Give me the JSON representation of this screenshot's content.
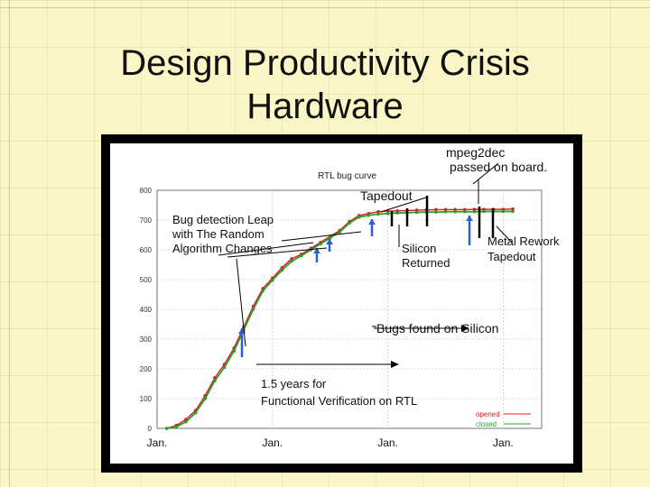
{
  "slide": {
    "title_line1": "Design Productivity Crisis",
    "title_line2": "Hardware"
  },
  "colors": {
    "background": "#fbf6c8",
    "frame": "#000000",
    "opened_series": "#d62020",
    "closed_series": "#2aa02a",
    "arrow_blue": "#2a5fd6"
  },
  "chart_data": {
    "type": "line",
    "title": "RTL bug curve",
    "xlabel": "",
    "ylabel": "",
    "x_tick_labels": [
      "Jan.",
      "Jan.",
      "Jan.",
      "Jan."
    ],
    "y_ticks": [
      0,
      100,
      200,
      300,
      400,
      500,
      600,
      700,
      800
    ],
    "ylim": [
      0,
      800
    ],
    "xlim_months": [
      0,
      40
    ],
    "grid": true,
    "legend_position": "bottom-right",
    "series": [
      {
        "name": "opened",
        "x": [
          1,
          2,
          3,
          4,
          5,
          6,
          7,
          8,
          9,
          10,
          11,
          12,
          13,
          14,
          15,
          16,
          17,
          18,
          19,
          20,
          21,
          22,
          23,
          24,
          25,
          26,
          27,
          28,
          29,
          30,
          31,
          32,
          33,
          34,
          35,
          36,
          37
        ],
        "y": [
          0,
          10,
          30,
          60,
          110,
          170,
          215,
          270,
          340,
          410,
          470,
          505,
          540,
          570,
          585,
          605,
          625,
          645,
          665,
          695,
          715,
          722,
          728,
          730,
          731,
          732,
          733,
          734,
          735,
          735,
          735,
          735,
          736,
          736,
          736,
          736,
          737
        ]
      },
      {
        "name": "closed",
        "x": [
          1,
          2,
          3,
          4,
          5,
          6,
          7,
          8,
          9,
          10,
          11,
          12,
          13,
          14,
          15,
          16,
          17,
          18,
          19,
          20,
          21,
          22,
          23,
          24,
          25,
          26,
          27,
          28,
          29,
          30,
          31,
          32,
          33,
          34,
          35,
          36,
          37
        ],
        "y": [
          0,
          5,
          22,
          52,
          100,
          160,
          205,
          260,
          330,
          400,
          462,
          498,
          532,
          562,
          580,
          600,
          620,
          640,
          660,
          690,
          710,
          716,
          720,
          722,
          724,
          725,
          726,
          727,
          727,
          728,
          728,
          728,
          728,
          729,
          729,
          729,
          729
        ]
      }
    ],
    "annotations": [
      "mpeg2dec",
      "passed on board.",
      "Tapedout",
      "Bug detection Leap",
      "with The Random",
      "Algorithm Changes",
      "Silicon",
      "Returned",
      "Metal Rework",
      "Tapedout",
      "Bugs found on Silicon",
      "1.5 years for",
      "Functional Verification on RTL"
    ]
  }
}
